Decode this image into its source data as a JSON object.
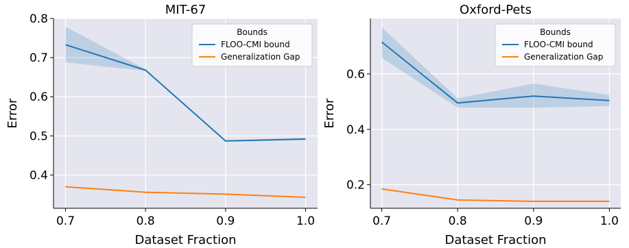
{
  "chart_data": [
    {
      "type": "line",
      "title": "MIT-67",
      "xlabel": "Dataset Fraction",
      "ylabel": "Error",
      "x": [
        0.7,
        0.8,
        0.9,
        1.0
      ],
      "xticks": [
        "0.7",
        "0.8",
        "0.9",
        "1.0"
      ],
      "xlim": [
        0.685,
        1.015
      ],
      "ylim": [
        0.315,
        0.8
      ],
      "yticks": [
        0.4,
        0.5,
        0.6,
        0.7,
        0.8
      ],
      "ytick_labels": [
        "0.4",
        "0.5",
        "0.6",
        "0.7",
        "0.8"
      ],
      "grid": true,
      "legend": {
        "title": "Bounds",
        "placement": "top-right"
      },
      "series": [
        {
          "name": "FLOO-CMI bound",
          "color": "#1f77b4",
          "values": [
            0.733,
            0.668,
            0.487,
            0.492
          ],
          "band_low": [
            0.688,
            0.666,
            0.485,
            0.489
          ],
          "band_high": [
            0.779,
            0.67,
            0.489,
            0.494
          ]
        },
        {
          "name": "Generalization Gap",
          "color": "#ff7f0e",
          "values": [
            0.37,
            0.356,
            0.351,
            0.343
          ]
        }
      ]
    },
    {
      "type": "line",
      "title": "Oxford-Pets",
      "xlabel": "Dataset Fraction",
      "ylabel": "Error",
      "x": [
        0.7,
        0.8,
        0.9,
        1.0
      ],
      "xticks": [
        "0.7",
        "0.8",
        "0.9",
        "1.0"
      ],
      "xlim": [
        0.685,
        1.015
      ],
      "ylim": [
        0.115,
        0.8
      ],
      "yticks": [
        0.2,
        0.4,
        0.6
      ],
      "ytick_labels": [
        "0.2",
        "0.4",
        "0.6"
      ],
      "grid": true,
      "legend": {
        "title": "Bounds",
        "placement": "top-right"
      },
      "series": [
        {
          "name": "FLOO-CMI bound",
          "color": "#1f77b4",
          "values": [
            0.715,
            0.495,
            0.52,
            0.504
          ],
          "band_low": [
            0.658,
            0.478,
            0.478,
            0.484
          ],
          "band_high": [
            0.768,
            0.512,
            0.565,
            0.524
          ]
        },
        {
          "name": "Generalization Gap",
          "color": "#ff7f0e",
          "values": [
            0.185,
            0.145,
            0.14,
            0.14
          ]
        }
      ]
    }
  ]
}
